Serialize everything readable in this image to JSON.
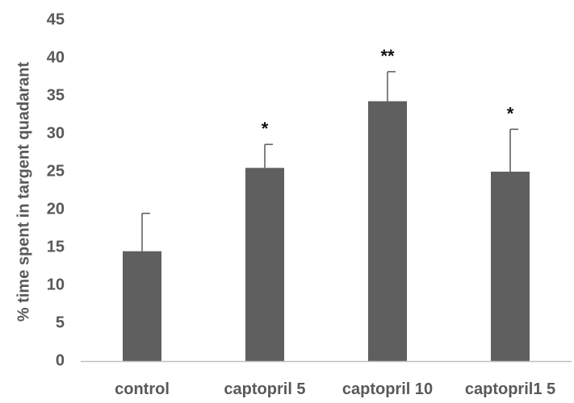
{
  "chart_data": {
    "type": "bar",
    "title": "",
    "xlabel": "",
    "ylabel": "% time spent in targent quadarant",
    "ylim": [
      0,
      45
    ],
    "yticks": [
      0,
      5,
      10,
      15,
      20,
      25,
      30,
      35,
      40,
      45
    ],
    "grid": false,
    "legend": "none",
    "categories": [
      "control",
      "captopril 5",
      "captopril 10",
      "captopril1 5"
    ],
    "values": [
      14.5,
      25.5,
      34.3,
      25.0
    ],
    "error_upper": [
      5.0,
      3.1,
      3.9,
      5.6
    ],
    "significance": [
      "",
      "*",
      "**",
      "*"
    ],
    "bar_color": "#5f5f5f",
    "axis_color": "#bfbfbf",
    "error_color": "#595959"
  }
}
